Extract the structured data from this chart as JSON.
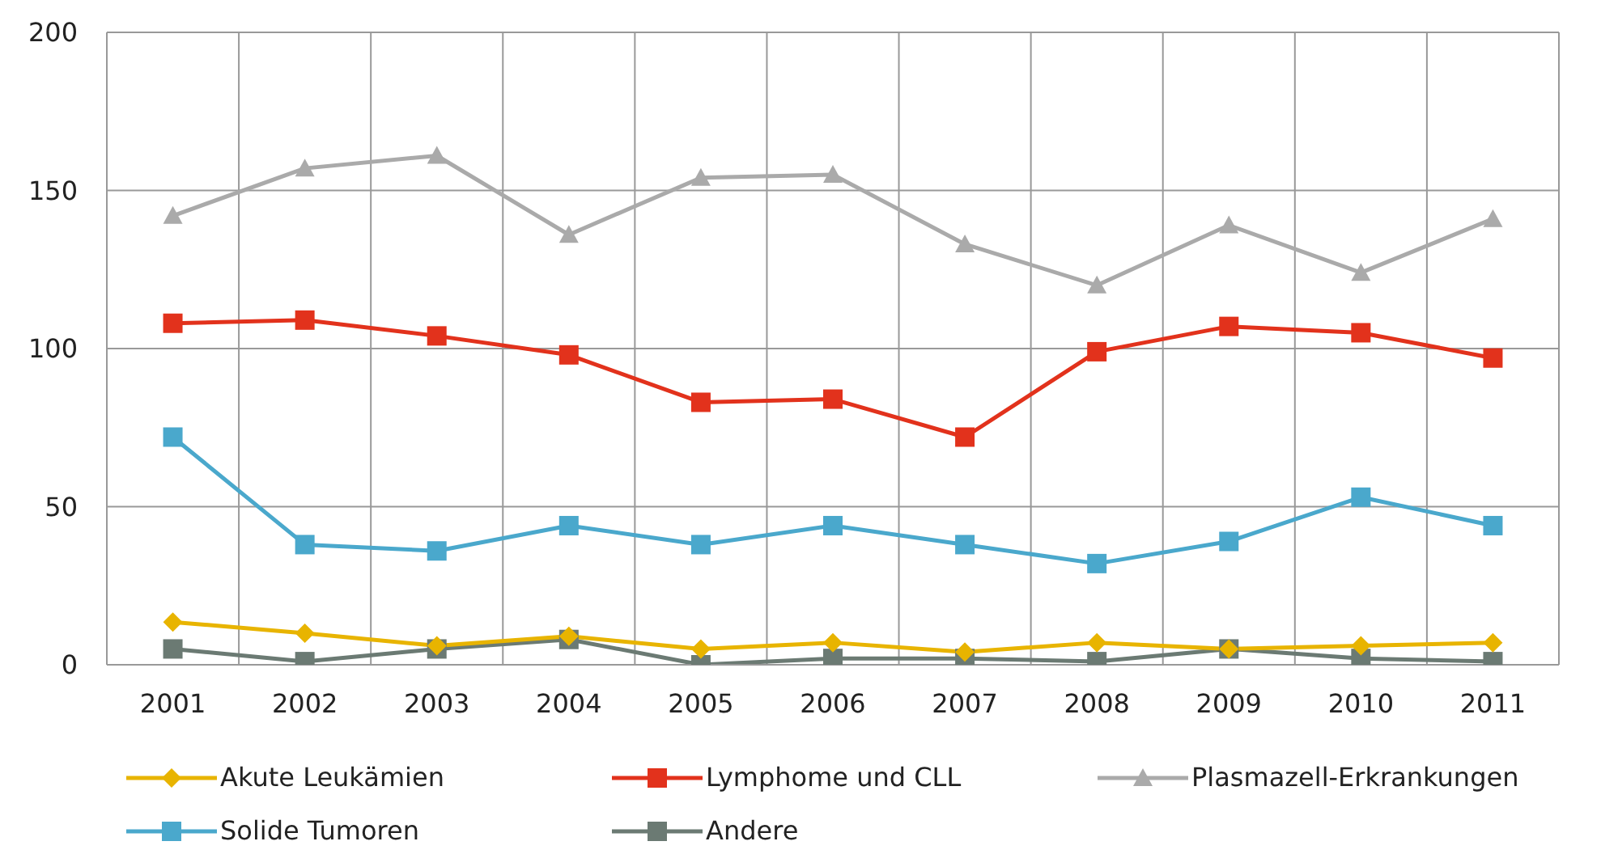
{
  "chart_data": {
    "type": "line",
    "categories": [
      "2001",
      "2002",
      "2003",
      "2004",
      "2005",
      "2006",
      "2007",
      "2008",
      "2009",
      "2010",
      "2011"
    ],
    "series": [
      {
        "name": "Akute Leukämien",
        "color": "#e8b400",
        "marker": "diamond",
        "values": [
          13.5,
          10,
          6,
          9,
          5,
          7,
          4,
          7,
          5,
          6,
          7
        ]
      },
      {
        "name": "Lymphome und CLL",
        "color": "#e2321c",
        "marker": "square",
        "values": [
          108,
          109,
          104,
          98,
          83,
          84,
          72,
          99,
          107,
          105,
          97
        ]
      },
      {
        "name": "Plasmazell-Erkrankungen",
        "color": "#aaaaaa",
        "marker": "triangle",
        "values": [
          142,
          157,
          161,
          136,
          154,
          155,
          133,
          120,
          139,
          124,
          141
        ]
      },
      {
        "name": "Solide Tumoren",
        "color": "#4aa8cc",
        "marker": "square",
        "values": [
          72,
          38,
          36,
          44,
          38,
          44,
          38,
          32,
          39,
          53,
          44
        ]
      },
      {
        "name": "Andere",
        "color": "#6b7a73",
        "marker": "square",
        "values": [
          5,
          1,
          5,
          8,
          0,
          2,
          2,
          1,
          5,
          2,
          1
        ]
      }
    ],
    "ylim": [
      0,
      200
    ],
    "yticks": [
      0,
      50,
      100,
      150,
      200
    ],
    "grid": true,
    "legend": "bottom",
    "line_style": "solid"
  }
}
